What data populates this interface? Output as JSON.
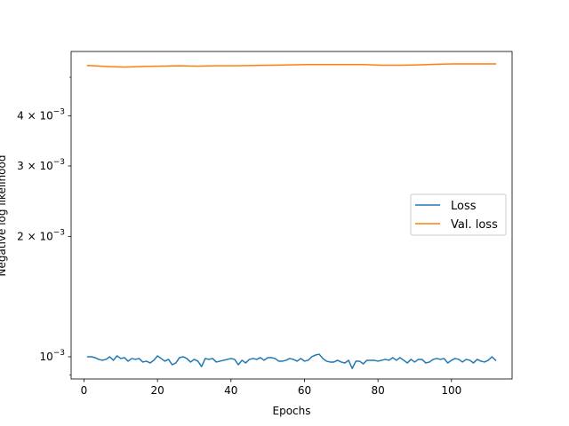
{
  "chart_data": {
    "type": "line",
    "title": "",
    "xlabel": "Epochs",
    "ylabel": "Negative log likelihood",
    "yscale": "log",
    "xlim": [
      -3.5,
      116.5
    ],
    "ylim": [
      0.00088,
      0.0058
    ],
    "x_ticks": [
      {
        "value": 0,
        "label": "0"
      },
      {
        "value": 20,
        "label": "20"
      },
      {
        "value": 40,
        "label": "40"
      },
      {
        "value": 60,
        "label": "60"
      },
      {
        "value": 80,
        "label": "80"
      },
      {
        "value": 100,
        "label": "100"
      }
    ],
    "y_ticks": [
      {
        "value": 0.001,
        "base": "10",
        "exp": "−3",
        "mult": ""
      },
      {
        "value": 0.002,
        "base": "10",
        "exp": "−3",
        "mult": "2 × "
      },
      {
        "value": 0.003,
        "base": "10",
        "exp": "−3",
        "mult": "3 × "
      },
      {
        "value": 0.004,
        "base": "10",
        "exp": "−3",
        "mult": "4 × "
      }
    ],
    "y_minor_ticks": [
      0.0009,
      0.005
    ],
    "grid": false,
    "legend_position": "center-right",
    "series": [
      {
        "name": "Loss",
        "color": "#1f77b4",
        "x": [
          1,
          2,
          3,
          4,
          5,
          6,
          7,
          8,
          9,
          10,
          11,
          12,
          13,
          14,
          15,
          16,
          17,
          18,
          19,
          20,
          21,
          22,
          23,
          24,
          25,
          26,
          27,
          28,
          29,
          30,
          31,
          32,
          33,
          34,
          35,
          36,
          37,
          38,
          39,
          40,
          41,
          42,
          43,
          44,
          45,
          46,
          47,
          48,
          49,
          50,
          51,
          52,
          53,
          54,
          55,
          56,
          57,
          58,
          59,
          60,
          61,
          62,
          63,
          64,
          65,
          66,
          67,
          68,
          69,
          70,
          71,
          72,
          73,
          74,
          75,
          76,
          77,
          78,
          79,
          80,
          81,
          82,
          83,
          84,
          85,
          86,
          87,
          88,
          89,
          90,
          91,
          92,
          93,
          94,
          95,
          96,
          97,
          98,
          99,
          100,
          101,
          102,
          103,
          104,
          105,
          106,
          107,
          108,
          109,
          110,
          111,
          112
        ],
        "values": [
          0.001,
          0.001,
          0.000995,
          0.000985,
          0.00098,
          0.000985,
          0.001,
          0.00098,
          0.001005,
          0.00099,
          0.000995,
          0.000975,
          0.00099,
          0.000985,
          0.00099,
          0.00097,
          0.000975,
          0.000965,
          0.00098,
          0.001005,
          0.00099,
          0.000975,
          0.000985,
          0.000955,
          0.000965,
          0.000995,
          0.001,
          0.00099,
          0.00097,
          0.000985,
          0.000975,
          0.000945,
          0.00099,
          0.000985,
          0.00099,
          0.00097,
          0.000975,
          0.00098,
          0.000985,
          0.00099,
          0.000985,
          0.000955,
          0.00098,
          0.000965,
          0.000985,
          0.00099,
          0.000985,
          0.000995,
          0.00098,
          0.000995,
          0.000995,
          0.00099,
          0.000975,
          0.000975,
          0.00098,
          0.00099,
          0.000985,
          0.000975,
          0.00099,
          0.000975,
          0.00098,
          0.001,
          0.00101,
          0.001015,
          0.00099,
          0.000975,
          0.00097,
          0.00097,
          0.00098,
          0.00097,
          0.000965,
          0.00098,
          0.000935,
          0.000975,
          0.000975,
          0.00096,
          0.00098,
          0.00098,
          0.00098,
          0.000975,
          0.00098,
          0.000985,
          0.00098,
          0.000995,
          0.00098,
          0.000995,
          0.00098,
          0.000965,
          0.000985,
          0.00097,
          0.000985,
          0.000985,
          0.000965,
          0.00097,
          0.000985,
          0.00099,
          0.000985,
          0.00099,
          0.000965,
          0.00098,
          0.00099,
          0.000985,
          0.00097,
          0.000985,
          0.00098,
          0.000965,
          0.000985,
          0.000975,
          0.00097,
          0.00098,
          0.001,
          0.00098
        ]
      },
      {
        "name": "Val. loss",
        "color": "#ff7f0e",
        "x": [
          1,
          6,
          11,
          16,
          21,
          26,
          31,
          36,
          41,
          46,
          51,
          56,
          61,
          66,
          71,
          76,
          81,
          86,
          91,
          96,
          101,
          106,
          112
        ],
        "values": [
          0.00535,
          0.00532,
          0.0053,
          0.00532,
          0.00533,
          0.00534,
          0.00533,
          0.00534,
          0.00534,
          0.00535,
          0.00536,
          0.00537,
          0.00538,
          0.00538,
          0.00538,
          0.00538,
          0.00536,
          0.00536,
          0.00537,
          0.00539,
          0.0054,
          0.0054,
          0.0054
        ]
      }
    ]
  }
}
